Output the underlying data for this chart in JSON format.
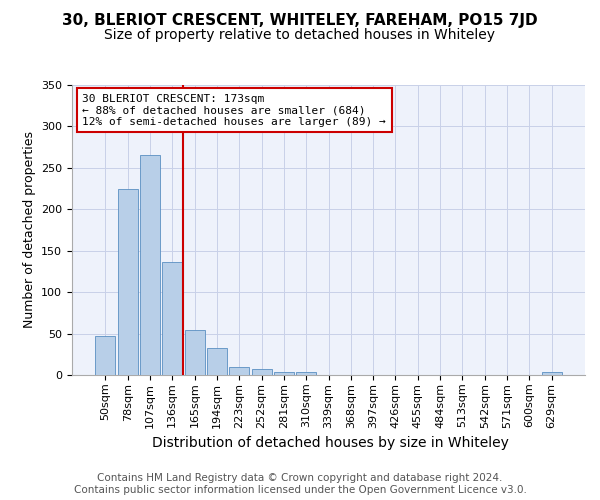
{
  "title": "30, BLERIOT CRESCENT, WHITELEY, FAREHAM, PO15 7JD",
  "subtitle": "Size of property relative to detached houses in Whiteley",
  "xlabel": "Distribution of detached houses by size in Whiteley",
  "ylabel": "Number of detached properties",
  "categories": [
    "50sqm",
    "78sqm",
    "107sqm",
    "136sqm",
    "165sqm",
    "194sqm",
    "223sqm",
    "252sqm",
    "281sqm",
    "310sqm",
    "339sqm",
    "368sqm",
    "397sqm",
    "426sqm",
    "455sqm",
    "484sqm",
    "513sqm",
    "542sqm",
    "571sqm",
    "600sqm",
    "629sqm"
  ],
  "values": [
    47,
    224,
    265,
    136,
    54,
    33,
    10,
    7,
    4,
    4,
    0,
    0,
    0,
    0,
    0,
    0,
    0,
    0,
    0,
    0,
    4
  ],
  "bar_color": "#b8cfe8",
  "bar_edge_color": "#5a8fc2",
  "vline_x_index": 4,
  "annotation_text": "30 BLERIOT CRESCENT: 173sqm\n← 88% of detached houses are smaller (684)\n12% of semi-detached houses are larger (89) →",
  "annotation_box_facecolor": "#ffffff",
  "annotation_box_edgecolor": "#cc0000",
  "vline_color": "#cc0000",
  "footer_text": "Contains HM Land Registry data © Crown copyright and database right 2024.\nContains public sector information licensed under the Open Government Licence v3.0.",
  "ylim": [
    0,
    350
  ],
  "title_fontsize": 11,
  "subtitle_fontsize": 10,
  "xlabel_fontsize": 10,
  "ylabel_fontsize": 9,
  "tick_fontsize": 8,
  "annotation_fontsize": 8,
  "footer_fontsize": 7.5,
  "background_color": "#eef2fb",
  "grid_color": "#c8d0e8",
  "yticks": [
    0,
    50,
    100,
    150,
    200,
    250,
    300,
    350
  ]
}
